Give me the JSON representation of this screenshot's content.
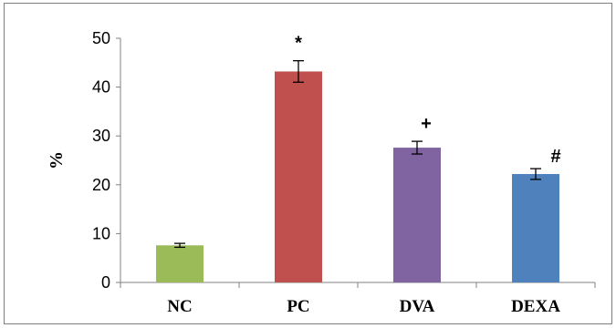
{
  "chart_data": {
    "type": "bar",
    "categories": [
      "NC",
      "PC",
      "DVA",
      "DEXA"
    ],
    "values": [
      7.6,
      43.2,
      27.6,
      22.2
    ],
    "errors": [
      0.4,
      2.2,
      1.3,
      1.1
    ],
    "annotations": [
      "",
      "*",
      "+",
      "#"
    ],
    "colors": [
      "#9bbb59",
      "#c0504d",
      "#8064a2",
      "#4f81bd"
    ],
    "ylabel": "%",
    "xlabel": "",
    "ylim": [
      0,
      50
    ],
    "yticks": [
      0,
      10,
      20,
      30,
      40,
      50
    ],
    "grid": false,
    "legend": "none"
  }
}
